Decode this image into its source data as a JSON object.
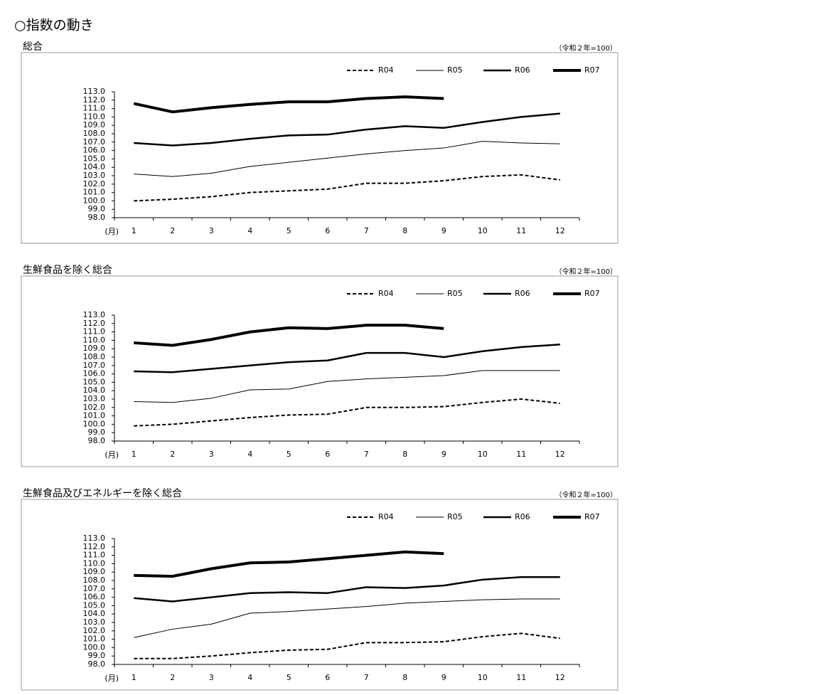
{
  "title": "○指数の動き",
  "chart_data": [
    {
      "type": "line",
      "title": "総合",
      "subtitle": "（令和２年=100）",
      "x_label": "(月)",
      "categories": [
        "1",
        "2",
        "3",
        "4",
        "5",
        "6",
        "7",
        "8",
        "9",
        "10",
        "11",
        "12"
      ],
      "ylim": [
        98,
        113
      ],
      "yticks": [
        {
          "value": 98,
          "label": "98.0"
        },
        {
          "value": 99,
          "label": "99.0"
        },
        {
          "value": 100,
          "label": "100.0"
        },
        {
          "value": 101,
          "label": "101.0"
        },
        {
          "value": 102,
          "label": "102.0"
        },
        {
          "value": 103,
          "label": "103.0"
        },
        {
          "value": 104,
          "label": "104.0"
        },
        {
          "value": 105,
          "label": "105.0"
        },
        {
          "value": 106,
          "label": "106.0"
        },
        {
          "value": 107,
          "label": "107.0"
        },
        {
          "value": 108,
          "label": "108.0"
        },
        {
          "value": 109,
          "label": "109.0"
        },
        {
          "value": 110,
          "label": "110.0"
        },
        {
          "value": 111,
          "label": "111.0"
        },
        {
          "value": 112,
          "label": "112.0"
        },
        {
          "value": 113,
          "label": "113.0"
        }
      ],
      "grid": false,
      "legend": "top-right",
      "series": [
        {
          "name": "R04",
          "color": "#000000",
          "line_width": 2,
          "dash": true,
          "values": [
            100.0,
            100.2,
            100.5,
            101.0,
            101.2,
            101.4,
            102.1,
            102.1,
            102.4,
            102.9,
            103.1,
            102.5
          ]
        },
        {
          "name": "R05",
          "color": "#000000",
          "line_width": 1,
          "dash": false,
          "values": [
            103.2,
            102.9,
            103.3,
            104.1,
            104.6,
            105.1,
            105.6,
            106.0,
            106.3,
            107.1,
            106.9,
            106.8
          ]
        },
        {
          "name": "R06",
          "color": "#000000",
          "line_width": 2.5,
          "dash": false,
          "values": [
            106.9,
            106.6,
            106.9,
            107.4,
            107.8,
            107.9,
            108.5,
            108.9,
            108.7,
            109.4,
            110.0,
            110.4
          ]
        },
        {
          "name": "R07",
          "color": "#000000",
          "line_width": 4,
          "dash": false,
          "values": [
            111.6,
            110.6,
            111.1,
            111.5,
            111.8,
            111.8,
            112.2,
            112.4,
            112.2,
            null,
            null,
            null
          ]
        }
      ]
    },
    {
      "type": "line",
      "title": "生鮮食品を除く総合",
      "subtitle": "（令和２年=100）",
      "x_label": "(月)",
      "categories": [
        "1",
        "2",
        "3",
        "4",
        "5",
        "6",
        "7",
        "8",
        "9",
        "10",
        "11",
        "12"
      ],
      "ylim": [
        98,
        113
      ],
      "yticks": [
        {
          "value": 98,
          "label": "98.0"
        },
        {
          "value": 99,
          "label": "99.0"
        },
        {
          "value": 100,
          "label": "100.0"
        },
        {
          "value": 101,
          "label": "101.0"
        },
        {
          "value": 102,
          "label": "102.0"
        },
        {
          "value": 103,
          "label": "103.0"
        },
        {
          "value": 104,
          "label": "104.0"
        },
        {
          "value": 105,
          "label": "105.0"
        },
        {
          "value": 106,
          "label": "106.0"
        },
        {
          "value": 107,
          "label": "107.0"
        },
        {
          "value": 108,
          "label": "108.0"
        },
        {
          "value": 109,
          "label": "109.0"
        },
        {
          "value": 110,
          "label": "110.0"
        },
        {
          "value": 111,
          "label": "111.0"
        },
        {
          "value": 112,
          "label": "112.0"
        },
        {
          "value": 113,
          "label": "113.0"
        }
      ],
      "grid": false,
      "legend": "top-right",
      "series": [
        {
          "name": "R04",
          "color": "#000000",
          "line_width": 2,
          "dash": true,
          "values": [
            99.8,
            100.0,
            100.4,
            100.8,
            101.1,
            101.2,
            102.0,
            102.0,
            102.1,
            102.6,
            103.0,
            102.5
          ]
        },
        {
          "name": "R05",
          "color": "#000000",
          "line_width": 1,
          "dash": false,
          "values": [
            102.7,
            102.6,
            103.1,
            104.1,
            104.2,
            105.1,
            105.4,
            105.6,
            105.8,
            106.4,
            106.4,
            106.4
          ]
        },
        {
          "name": "R06",
          "color": "#000000",
          "line_width": 2.5,
          "dash": false,
          "values": [
            106.3,
            106.2,
            106.6,
            107.0,
            107.4,
            107.6,
            108.5,
            108.5,
            108.0,
            108.7,
            109.2,
            109.5
          ]
        },
        {
          "name": "R07",
          "color": "#000000",
          "line_width": 4,
          "dash": false,
          "values": [
            109.7,
            109.4,
            110.1,
            111.0,
            111.5,
            111.4,
            111.8,
            111.8,
            111.4,
            null,
            null,
            null
          ]
        }
      ]
    },
    {
      "type": "line",
      "title": "生鮮食品及びエネルギーを除く総合",
      "subtitle": "（令和２年=100）",
      "x_label": "(月)",
      "categories": [
        "1",
        "2",
        "3",
        "4",
        "5",
        "6",
        "7",
        "8",
        "9",
        "10",
        "11",
        "12"
      ],
      "ylim": [
        98,
        113
      ],
      "yticks": [
        {
          "value": 98,
          "label": "98.0"
        },
        {
          "value": 99,
          "label": "99.0"
        },
        {
          "value": 100,
          "label": "100.0"
        },
        {
          "value": 101,
          "label": "101.0"
        },
        {
          "value": 102,
          "label": "102.0"
        },
        {
          "value": 103,
          "label": "103.0"
        },
        {
          "value": 104,
          "label": "104.0"
        },
        {
          "value": 105,
          "label": "105.0"
        },
        {
          "value": 106,
          "label": "106.0"
        },
        {
          "value": 107,
          "label": "107.0"
        },
        {
          "value": 108,
          "label": "108.0"
        },
        {
          "value": 109,
          "label": "109.0"
        },
        {
          "value": 110,
          "label": "110.0"
        },
        {
          "value": 111,
          "label": "111.0"
        },
        {
          "value": 112,
          "label": "112.0"
        },
        {
          "value": 113,
          "label": "113.0"
        }
      ],
      "grid": false,
      "legend": "top-right",
      "series": [
        {
          "name": "R04",
          "color": "#000000",
          "line_width": 2,
          "dash": true,
          "values": [
            98.7,
            98.7,
            99.0,
            99.4,
            99.7,
            99.8,
            100.6,
            100.6,
            100.7,
            101.3,
            101.7,
            101.1
          ]
        },
        {
          "name": "R05",
          "color": "#000000",
          "line_width": 1,
          "dash": false,
          "values": [
            101.2,
            102.2,
            102.8,
            104.1,
            104.3,
            104.6,
            104.9,
            105.3,
            105.5,
            105.7,
            105.8,
            105.8
          ]
        },
        {
          "name": "R06",
          "color": "#000000",
          "line_width": 2.5,
          "dash": false,
          "values": [
            105.9,
            105.5,
            106.0,
            106.5,
            106.6,
            106.5,
            107.2,
            107.1,
            107.4,
            108.1,
            108.4,
            108.4
          ]
        },
        {
          "name": "R07",
          "color": "#000000",
          "line_width": 4,
          "dash": false,
          "values": [
            108.6,
            108.5,
            109.4,
            110.1,
            110.2,
            110.6,
            111.0,
            111.4,
            111.2,
            null,
            null,
            null
          ]
        }
      ]
    }
  ]
}
